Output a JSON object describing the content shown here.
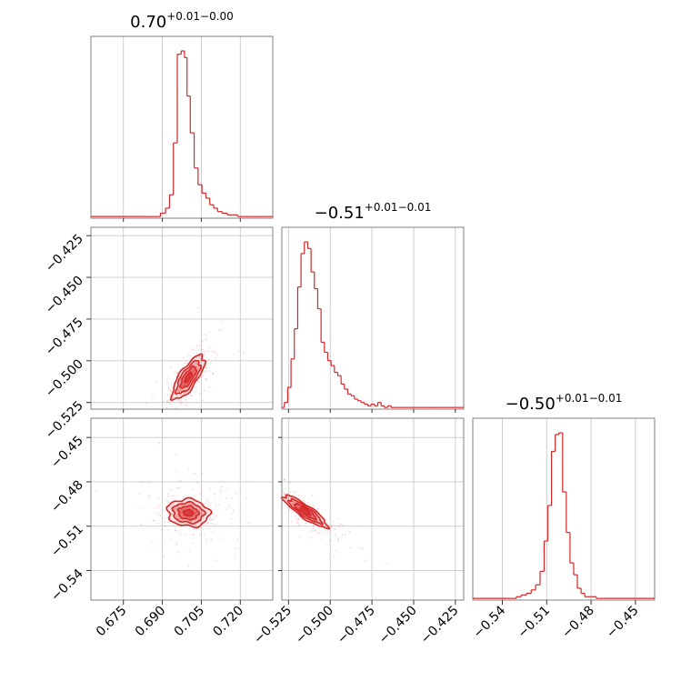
{
  "chart_data": {
    "type": "corner",
    "color": "#d62728",
    "grid": true,
    "parameters": [
      {
        "title_value": "0.70",
        "title_plus": "+0.01",
        "title_minus": "−0.00",
        "range": [
          0.6625,
          0.7325
        ],
        "ticks": [
          {
            "value": 0.675,
            "label": "0.675"
          },
          {
            "value": 0.69,
            "label": "0.690"
          },
          {
            "value": 0.705,
            "label": "0.705"
          },
          {
            "value": 0.72,
            "label": "0.720"
          }
        ],
        "histogram": {
          "x": [
            0.68,
            0.6855,
            0.688,
            0.6905,
            0.692,
            0.6935,
            0.695,
            0.6965,
            0.698,
            0.699,
            0.7,
            0.7015,
            0.703,
            0.7045,
            0.706,
            0.7075,
            0.709,
            0.7105,
            0.712,
            0.714,
            0.716,
            0.718,
            0.72,
            0.722,
            0.724,
            0.727,
            0.73
          ],
          "counts": [
            1,
            1,
            1,
            3,
            6,
            14,
            45,
            98,
            100,
            96,
            73,
            51,
            30,
            20,
            15,
            12,
            8,
            6,
            4,
            3,
            2,
            2,
            1,
            1,
            1,
            1,
            1
          ]
        }
      },
      {
        "title_value": "−0.51",
        "title_plus": "+0.01",
        "title_minus": "−0.01",
        "range": [
          -0.529,
          -0.42
        ],
        "ticks": [
          {
            "value": -0.525,
            "label": "−0.525"
          },
          {
            "value": -0.5,
            "label": "−0.500"
          },
          {
            "value": -0.475,
            "label": "−0.475"
          },
          {
            "value": -0.45,
            "label": "−0.450"
          },
          {
            "value": -0.425,
            "label": "−0.425"
          }
        ],
        "histogram": {
          "x": [
            -0.5285,
            -0.5265,
            -0.5245,
            -0.5225,
            -0.5205,
            -0.5185,
            -0.5165,
            -0.5145,
            -0.5125,
            -0.5105,
            -0.5085,
            -0.5065,
            -0.5045,
            -0.5025,
            -0.5005,
            -0.4985,
            -0.4965,
            -0.4945,
            -0.4925,
            -0.4905,
            -0.4885,
            -0.4865,
            -0.4845,
            -0.4825,
            -0.4805,
            -0.4785,
            -0.4765,
            -0.4745,
            -0.4725,
            -0.4705,
            -0.4685,
            -0.4665,
            -0.4645,
            -0.4625,
            -0.4605,
            -0.4585,
            -0.4565,
            -0.4545,
            -0.4525,
            -0.4505,
            -0.4455,
            -0.4405,
            -0.4355,
            -0.4305,
            -0.4255,
            -0.4215
          ],
          "counts": [
            1,
            4,
            13,
            30,
            48,
            73,
            93,
            100,
            96,
            82,
            72,
            60,
            40,
            34,
            29,
            26,
            22,
            20,
            15,
            12,
            9,
            8,
            6,
            5,
            4,
            3,
            2,
            3,
            2,
            4,
            2,
            1,
            2,
            1,
            1,
            1,
            1,
            1,
            1,
            1,
            1,
            1,
            1,
            1,
            1,
            1
          ]
        }
      },
      {
        "title_value": "−0.50",
        "title_plus": "+0.01",
        "title_minus": "−0.01",
        "range": [
          -0.56,
          -0.437
        ],
        "ticks": [
          {
            "value": -0.54,
            "label": "−0.54"
          },
          {
            "value": -0.51,
            "label": "−0.51"
          },
          {
            "value": -0.48,
            "label": "−0.48"
          },
          {
            "value": -0.45,
            "label": "−0.45"
          }
        ],
        "histogram": {
          "x": [
            -0.542,
            -0.532,
            -0.529,
            -0.5255,
            -0.522,
            -0.519,
            -0.516,
            -0.513,
            -0.5105,
            -0.508,
            -0.5055,
            -0.503,
            -0.5005,
            -0.498,
            -0.4955,
            -0.493,
            -0.4905,
            -0.488,
            -0.4855,
            -0.483,
            -0.479,
            -0.474,
            -0.47
          ],
          "counts": [
            1,
            1,
            2,
            3,
            4,
            6,
            9,
            17,
            35,
            56,
            88,
            98,
            99,
            64,
            40,
            22,
            15,
            7,
            4,
            2,
            2,
            1,
            1
          ]
        }
      }
    ],
    "panels_2d": [
      {
        "x_param": 0,
        "y_param": 1,
        "center": [
          0.7,
          -0.51
        ],
        "sigma": [
          0.004,
          0.0085
        ],
        "rho": 0.75,
        "levels": [
          0.35,
          0.75,
          1.15,
          1.55
        ]
      },
      {
        "x_param": 0,
        "y_param": 2,
        "center": [
          0.7,
          -0.501
        ],
        "sigma": [
          0.0052,
          0.006
        ],
        "rho": -0.1,
        "levels": [
          0.35,
          0.75,
          1.15,
          1.55
        ]
      },
      {
        "x_param": 1,
        "y_param": 2,
        "center": [
          -0.515,
          -0.5
        ],
        "sigma": [
          0.0085,
          0.007
        ],
        "rho": -0.88,
        "levels": [
          0.35,
          0.75,
          1.15,
          1.55
        ]
      }
    ]
  }
}
